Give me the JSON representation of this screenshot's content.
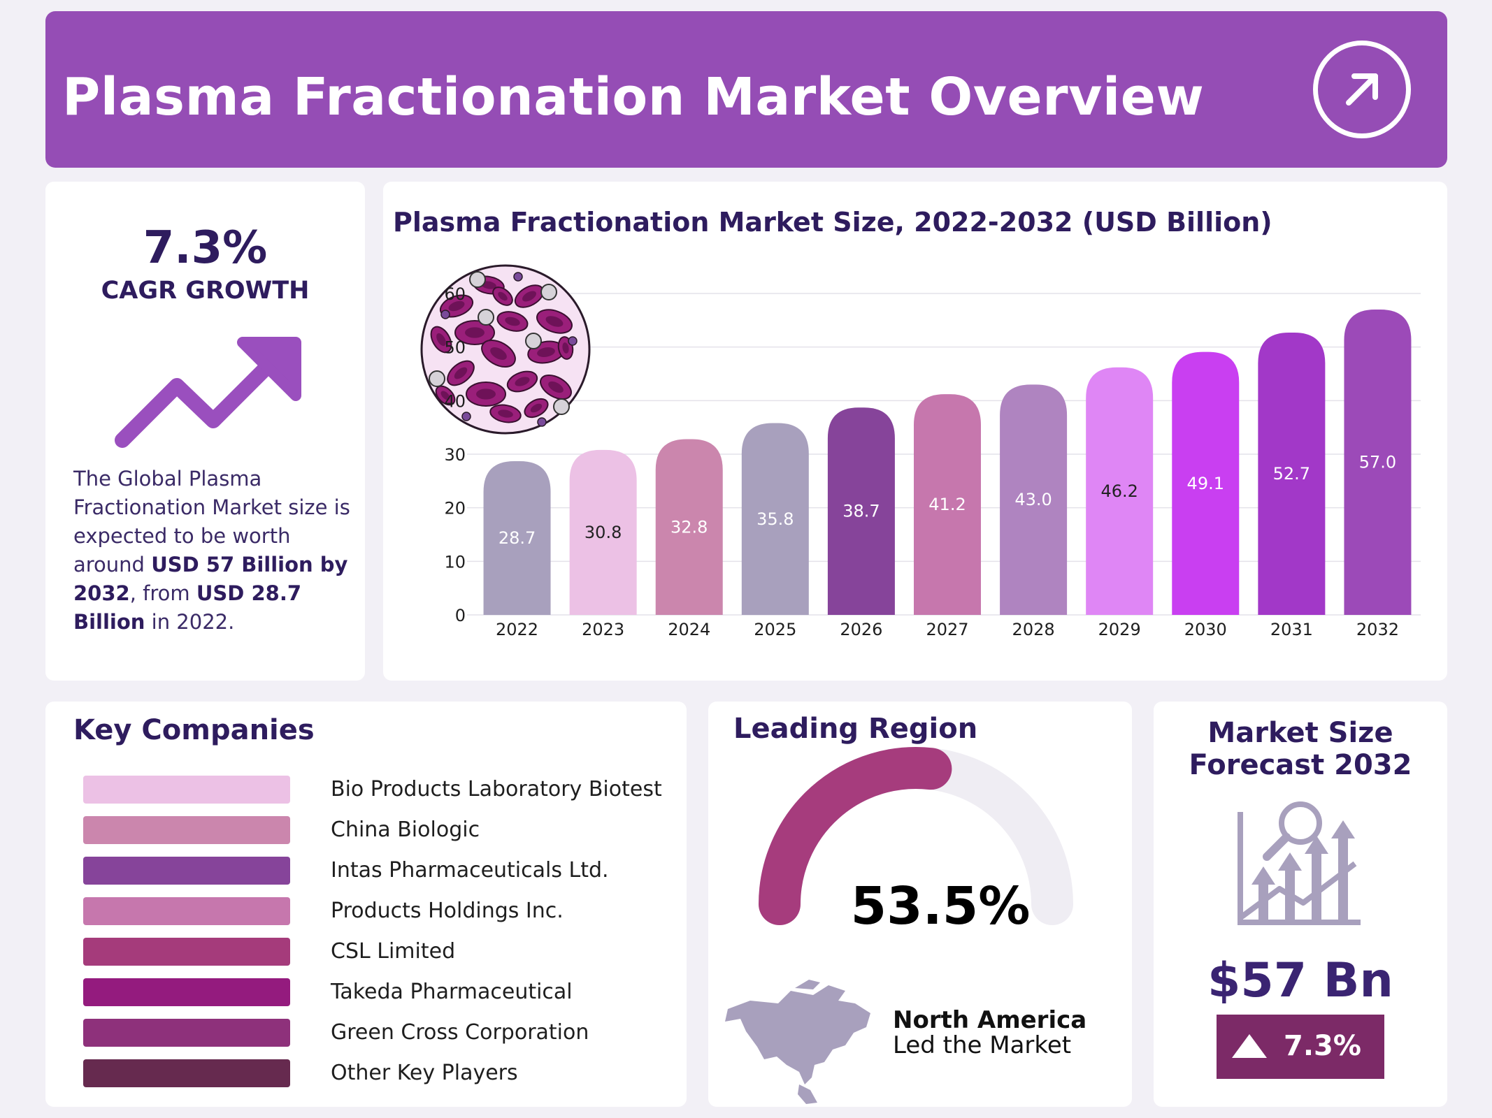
{
  "header": {
    "title": "Plasma Fractionation Market Overview",
    "icon": "arrow-up-right-icon"
  },
  "cagr": {
    "value": "7.3%",
    "label": "CAGR GROWTH",
    "icon": "trend-up-arrow-icon",
    "desc_1": "The Global Plasma Fractionation Market size is expected to be worth around ",
    "desc_2": "USD 57 Billion by 2032",
    "desc_3": ", from ",
    "desc_4": "USD 28.7 Billion",
    "desc_5": " in 2022."
  },
  "chart_data": {
    "type": "bar",
    "title": "Plasma Fractionation Market Size, 2022-2032 (USD Billion)",
    "categories": [
      "2022",
      "2023",
      "2024",
      "2025",
      "2026",
      "2027",
      "2028",
      "2029",
      "2030",
      "2031",
      "2032"
    ],
    "values": [
      28.7,
      30.8,
      32.8,
      35.8,
      38.7,
      41.2,
      43.0,
      46.2,
      49.1,
      52.7,
      57.0
    ],
    "data_labels": [
      "28.7",
      "30.8",
      "32.8",
      "35.8",
      "38.7",
      "41.2",
      "43.0",
      "46.2",
      "49.1",
      "52.7",
      "57.0"
    ],
    "colors": [
      "#a8a0bd",
      "#ecc1e5",
      "#cb86ad",
      "#a8a0bd",
      "#86449a",
      "#c677ad",
      "#af84c0",
      "#df86f5",
      "#c93ff1",
      "#a238c8",
      "#9c4ab8"
    ],
    "label_colors": [
      "#ffffff",
      "#222222",
      "#ffffff",
      "#ffffff",
      "#ffffff",
      "#ffffff",
      "#ffffff",
      "#222222",
      "#ffffff",
      "#ffffff",
      "#ffffff"
    ],
    "yticks": [
      "0",
      "10",
      "20",
      "30",
      "40",
      "50",
      "60"
    ],
    "ylim": [
      0,
      60
    ],
    "grid": true,
    "xlabel": "",
    "ylabel": "",
    "decoration_icon": "blood-cells-icon"
  },
  "companies": {
    "title": "Key Companies",
    "items": [
      {
        "name": "Bio Products Laboratory Biotest",
        "color": "#ecc1e5"
      },
      {
        "name": "China Biologic",
        "color": "#cb86ad"
      },
      {
        "name": "Intas Pharmaceuticals Ltd.",
        "color": "#86449a"
      },
      {
        "name": "Products Holdings Inc.",
        "color": "#c677ad"
      },
      {
        "name": "CSL Limited",
        "color": "#a53b7b"
      },
      {
        "name": "Takeda Pharmaceutical",
        "color": "#941b7e"
      },
      {
        "name": "Green Cross Corporation",
        "color": "#8e317b"
      },
      {
        "name": "Other Key Players",
        "color": "#662a4f"
      }
    ]
  },
  "region": {
    "title": "Leading Region",
    "share_percent": 53.5,
    "share_label": "53.5%",
    "gauge_color": "#a63c7d",
    "track_color": "#efedf3",
    "name": "North America",
    "sub": "Led the Market",
    "map_icon": "north-america-map-icon"
  },
  "forecast": {
    "title": "Market Size Forecast 2032",
    "icon": "growth-analysis-icon",
    "value": "$57 Bn",
    "growth": "7.3%",
    "growth_icon": "triangle-up-icon"
  }
}
